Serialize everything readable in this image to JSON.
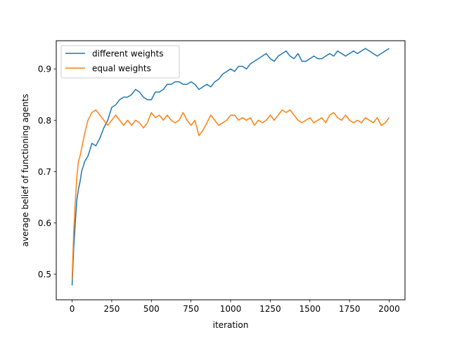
{
  "chart_data": {
    "type": "line",
    "title": "",
    "xlabel": "iteration",
    "ylabel": "average belief of functioning agents",
    "xlim": [
      -100,
      2100
    ],
    "ylim": [
      0.45,
      0.955
    ],
    "xticks": [
      0,
      250,
      500,
      750,
      1000,
      1250,
      1500,
      1750,
      2000
    ],
    "yticks": [
      0.5,
      0.6,
      0.7,
      0.8,
      0.9
    ],
    "ytick_labels": [
      "0.5",
      "0.6",
      "0.7",
      "0.8",
      "0.9"
    ],
    "grid": false,
    "legend_position": "top-left",
    "series": [
      {
        "name": "different weights",
        "color": "#1f77b4",
        "x": [
          0,
          10,
          20,
          30,
          40,
          50,
          60,
          80,
          100,
          125,
          150,
          175,
          200,
          225,
          250,
          275,
          300,
          325,
          350,
          375,
          400,
          425,
          450,
          475,
          500,
          525,
          550,
          575,
          600,
          625,
          650,
          675,
          700,
          725,
          750,
          775,
          800,
          825,
          850,
          875,
          900,
          925,
          950,
          975,
          1000,
          1025,
          1050,
          1075,
          1100,
          1125,
          1150,
          1175,
          1200,
          1225,
          1250,
          1275,
          1300,
          1325,
          1350,
          1375,
          1400,
          1425,
          1450,
          1475,
          1500,
          1525,
          1550,
          1575,
          1600,
          1625,
          1650,
          1675,
          1700,
          1725,
          1750,
          1775,
          1800,
          1825,
          1850,
          1875,
          1900,
          1925,
          1950,
          1975,
          2000
        ],
        "y": [
          0.478,
          0.55,
          0.6,
          0.645,
          0.665,
          0.68,
          0.7,
          0.72,
          0.73,
          0.755,
          0.75,
          0.765,
          0.785,
          0.8,
          0.825,
          0.83,
          0.84,
          0.845,
          0.845,
          0.85,
          0.86,
          0.855,
          0.845,
          0.84,
          0.84,
          0.855,
          0.855,
          0.86,
          0.87,
          0.87,
          0.875,
          0.875,
          0.87,
          0.87,
          0.875,
          0.87,
          0.86,
          0.865,
          0.87,
          0.865,
          0.875,
          0.88,
          0.89,
          0.895,
          0.9,
          0.895,
          0.905,
          0.905,
          0.9,
          0.91,
          0.915,
          0.92,
          0.925,
          0.93,
          0.92,
          0.915,
          0.925,
          0.93,
          0.935,
          0.925,
          0.92,
          0.93,
          0.915,
          0.915,
          0.92,
          0.925,
          0.92,
          0.92,
          0.925,
          0.93,
          0.925,
          0.935,
          0.93,
          0.925,
          0.93,
          0.935,
          0.93,
          0.935,
          0.94,
          0.935,
          0.93,
          0.925,
          0.93,
          0.935,
          0.94
        ]
      },
      {
        "name": "equal weights",
        "color": "#ff7f0e",
        "x": [
          0,
          10,
          20,
          30,
          40,
          50,
          60,
          80,
          100,
          125,
          150,
          175,
          200,
          225,
          250,
          275,
          300,
          325,
          350,
          375,
          400,
          425,
          450,
          475,
          500,
          525,
          550,
          575,
          600,
          625,
          650,
          675,
          700,
          725,
          750,
          775,
          800,
          825,
          850,
          875,
          900,
          925,
          950,
          975,
          1000,
          1025,
          1050,
          1075,
          1100,
          1125,
          1150,
          1175,
          1200,
          1225,
          1250,
          1275,
          1300,
          1325,
          1350,
          1375,
          1400,
          1425,
          1450,
          1475,
          1500,
          1525,
          1550,
          1575,
          1600,
          1625,
          1650,
          1675,
          1700,
          1725,
          1750,
          1775,
          1800,
          1825,
          1850,
          1875,
          1900,
          1925,
          1950,
          1975,
          2000
        ],
        "y": [
          0.49,
          0.58,
          0.64,
          0.69,
          0.72,
          0.73,
          0.745,
          0.775,
          0.8,
          0.815,
          0.82,
          0.81,
          0.8,
          0.79,
          0.8,
          0.81,
          0.8,
          0.79,
          0.8,
          0.79,
          0.8,
          0.795,
          0.785,
          0.795,
          0.815,
          0.805,
          0.81,
          0.8,
          0.81,
          0.8,
          0.795,
          0.8,
          0.815,
          0.8,
          0.79,
          0.8,
          0.77,
          0.78,
          0.795,
          0.81,
          0.8,
          0.79,
          0.795,
          0.8,
          0.81,
          0.81,
          0.8,
          0.805,
          0.8,
          0.805,
          0.79,
          0.8,
          0.795,
          0.8,
          0.81,
          0.8,
          0.81,
          0.82,
          0.815,
          0.82,
          0.81,
          0.8,
          0.795,
          0.8,
          0.805,
          0.795,
          0.8,
          0.805,
          0.795,
          0.81,
          0.815,
          0.805,
          0.8,
          0.81,
          0.8,
          0.795,
          0.8,
          0.795,
          0.805,
          0.8,
          0.795,
          0.805,
          0.79,
          0.795,
          0.805
        ]
      }
    ]
  }
}
